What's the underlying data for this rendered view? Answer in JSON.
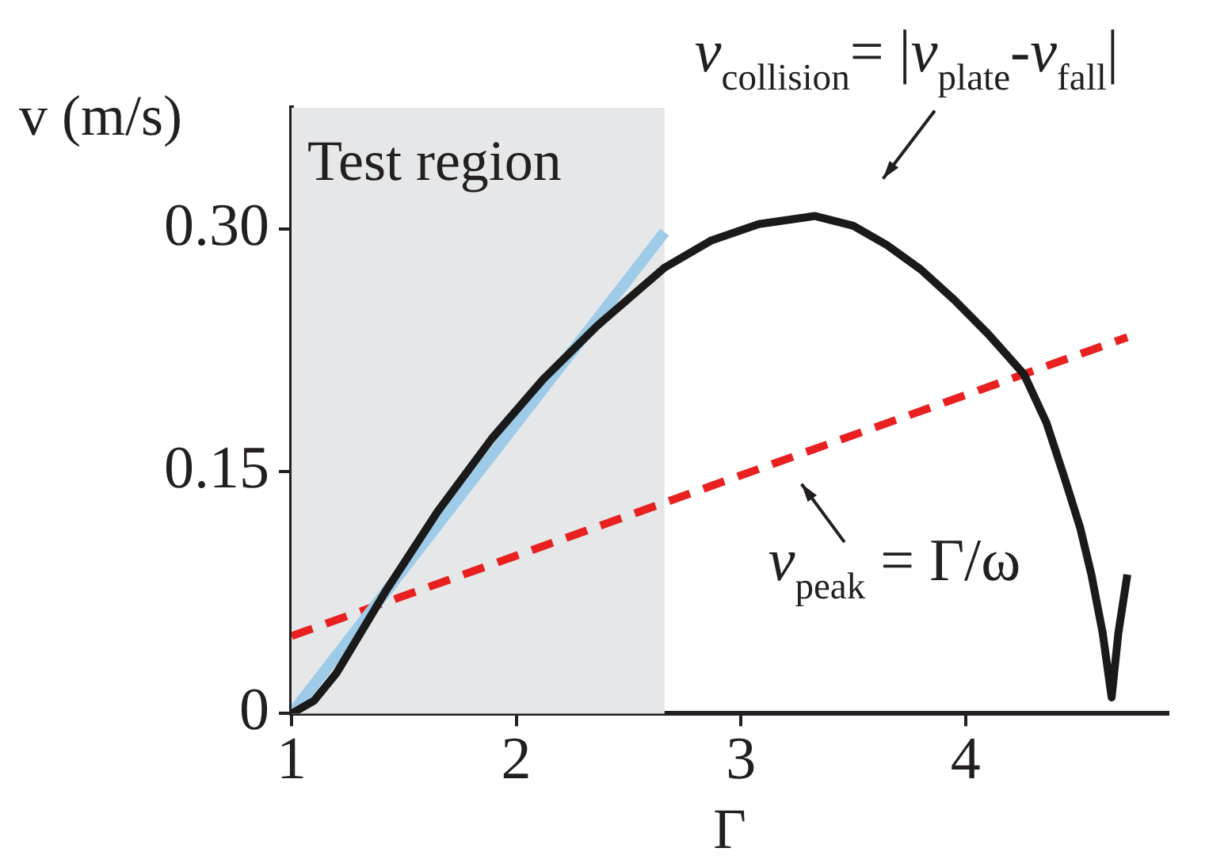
{
  "chart_data": {
    "type": "line",
    "xlabel": "Γ",
    "ylabel": "v (m/s)",
    "xlim": [
      1,
      4.9
    ],
    "xticks": [
      1,
      2,
      3,
      4
    ],
    "ylim": [
      0,
      0.375
    ],
    "yticks": [
      0,
      {
        "value": 0.15,
        "label": "0.15"
      },
      {
        "value": 0.3,
        "label": "0.30"
      }
    ],
    "grid": false,
    "legend": false,
    "marker": "none",
    "bands": [
      {
        "axis": "x",
        "from": 1,
        "to": 2.66,
        "label": "Test region",
        "color": "#e6e7e9"
      }
    ],
    "series": [
      {
        "color": "#1a1a1a",
        "x": [
          1,
          1.1,
          1.2,
          1.42,
          1.65,
          1.89,
          2.12,
          2.36,
          2.66,
          2.87,
          3.08,
          3.33,
          3.5,
          3.65,
          3.8,
          3.95,
          4.1,
          4.26,
          4.36,
          4.44,
          4.51,
          4.56,
          4.61,
          4.65,
          4.68,
          4.72
        ],
        "values": [
          0,
          0.008,
          0.025,
          0.076,
          0.125,
          0.17,
          0.207,
          0.24,
          0.276,
          0.293,
          0.303,
          0.308,
          0.302,
          0.29,
          0.275,
          0.256,
          0.235,
          0.21,
          0.18,
          0.146,
          0.115,
          0.086,
          0.05,
          0.01,
          0.05,
          0.086
        ]
      },
      {
        "color": "#9ecbe8",
        "x": [
          1,
          2.66
        ],
        "values": [
          0,
          0.298
        ]
      },
      {
        "color": "#e8201f",
        "line_style": "dashed",
        "x": [
          1,
          4.72
        ],
        "values": [
          0.048,
          0.233
        ]
      }
    ],
    "annotations": [
      "v$_{collision}$= |v$_{plate}$-v$_{fall}$|",
      "v$_{peak}$ = Γ/ω"
    ]
  }
}
